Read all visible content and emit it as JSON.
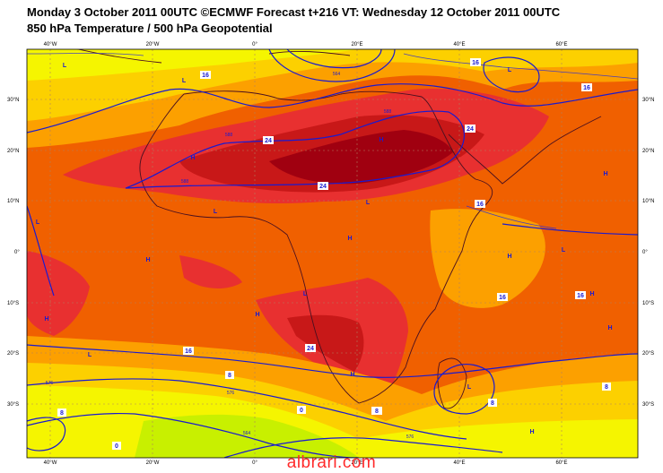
{
  "header": {
    "line1": "Monday 3 October 2011 00UTC ©ECMWF Forecast t+216 VT: Wednesday 12 October 2011 00UTC",
    "line2": "850 hPa Temperature / 500 hPa Geopotential"
  },
  "axes": {
    "lon_labels": [
      "40°W",
      "20°W",
      "0°",
      "20°E",
      "40°E",
      "60°E"
    ],
    "lat_labels": [
      "30°N",
      "20°N",
      "10°N",
      "0°",
      "10°S",
      "20°S",
      "30°S"
    ]
  },
  "pressure_centers": [
    "L",
    "L",
    "L",
    "L",
    "H",
    "H",
    "H",
    "L",
    "H",
    "L",
    "H",
    "H",
    "H",
    "L",
    "H",
    "H",
    "L",
    "L",
    "H",
    "H",
    "H",
    "L"
  ],
  "temperature_labels": [
    "16",
    "16",
    "16",
    "24",
    "24",
    "24",
    "16",
    "16",
    "16",
    "24",
    "16",
    "8",
    "8",
    "8",
    "0",
    "0",
    "8",
    "8"
  ],
  "geopotential_labels": [
    "564",
    "588",
    "588",
    "588",
    "576",
    "576",
    "564",
    "576"
  ],
  "watermark": "albrari.com",
  "colors": {
    "t_cold": "#c8f000",
    "t_8_12": "#f5f500",
    "t_12_16": "#fcd000",
    "t_16_20": "#fca000",
    "t_20_24": "#f06000",
    "t_24_28": "#e83030",
    "t_28_32": "#c81818",
    "t_32": "#a00010",
    "contour": "#1a1ad0",
    "coast": "#4a1020",
    "grid": "#b08060",
    "watermark": "#ff2a2a"
  }
}
